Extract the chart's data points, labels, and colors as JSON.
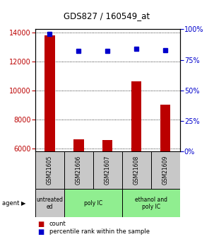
{
  "title": "GDS827 / 160549_at",
  "samples": [
    "GSM21605",
    "GSM21606",
    "GSM21607",
    "GSM21608",
    "GSM21609"
  ],
  "bar_values": [
    13800,
    6600,
    6550,
    10600,
    9000
  ],
  "percentile_values": [
    96,
    82,
    82,
    84,
    83
  ],
  "ylim_left": [
    5800,
    14200
  ],
  "ylim_right": [
    0,
    100
  ],
  "yticks_left": [
    6000,
    8000,
    10000,
    12000,
    14000
  ],
  "yticks_right": [
    0,
    25,
    50,
    75,
    100
  ],
  "bar_color": "#bb0000",
  "point_color": "#0000cc",
  "agent_labels": [
    {
      "label": "untreated\ned",
      "start": 0,
      "end": 1
    },
    {
      "label": "poly IC",
      "start": 1,
      "end": 3
    },
    {
      "label": "ethanol and\npoly IC",
      "start": 3,
      "end": 5
    }
  ],
  "agent_colors": [
    "#c8c8c8",
    "#90ee90",
    "#90ee90"
  ],
  "sample_box_color": "#c8c8c8",
  "legend_count_color": "#bb0000",
  "legend_percentile_color": "#0000cc"
}
